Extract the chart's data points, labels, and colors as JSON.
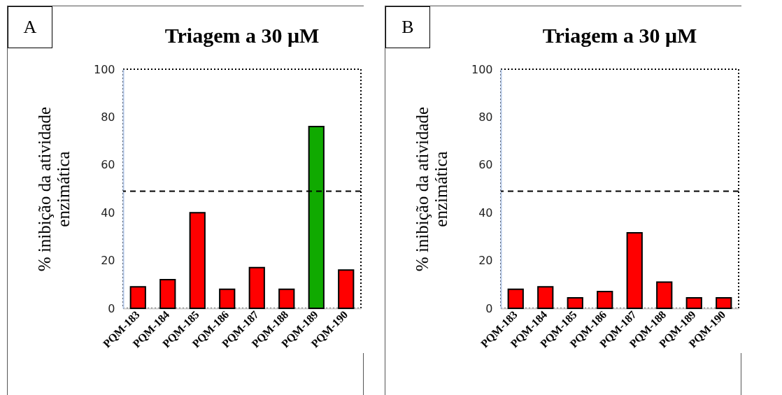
{
  "chart_data": [
    {
      "type": "bar",
      "title": "Triagem a 30 μM",
      "ylabel": "% inibição da atividade enzimática",
      "annotations": [
        "A"
      ],
      "categories": [
        "PQM-183",
        "PQM-184",
        "PQM-185",
        "PQM-186",
        "PQM-187",
        "PQM-188",
        "PQM-189",
        "PQM-190"
      ],
      "values": [
        9,
        12,
        40,
        8,
        17,
        8,
        76,
        16
      ],
      "colors": [
        "#ff0000",
        "#ff0000",
        "#ff0000",
        "#ff0000",
        "#ff0000",
        "#ff0000",
        "#10aa00",
        "#ff0000"
      ],
      "ylim": [
        0,
        100
      ],
      "yticks": [
        0,
        20,
        40,
        60,
        80,
        100
      ],
      "grid": false,
      "ref_lines": [
        {
          "axis": "y",
          "value": 49,
          "color": "#000000",
          "line_style": "dashed"
        }
      ]
    },
    {
      "type": "bar",
      "title": "Triagem a 30 μM",
      "ylabel": "% inibição da atividade enzimática",
      "annotations": [
        "B"
      ],
      "categories": [
        "PQM-183",
        "PQM-184",
        "PQM-185",
        "PQM-186",
        "PQM-187",
        "PQM-188",
        "PQM-189",
        "PQM-190"
      ],
      "values": [
        8,
        9,
        4.4,
        7,
        31.6,
        11,
        4.4,
        4.4
      ],
      "colors": [
        "#ff0000",
        "#ff0000",
        "#ff0000",
        "#ff0000",
        "#ff0000",
        "#ff0000",
        "#ff0000",
        "#ff0000"
      ],
      "ylim": [
        0,
        100
      ],
      "yticks": [
        0,
        20,
        40,
        60,
        80,
        100
      ],
      "grid": false,
      "ref_lines": [
        {
          "axis": "y",
          "value": 49,
          "color": "#000000",
          "line_style": "dashed"
        }
      ]
    }
  ]
}
